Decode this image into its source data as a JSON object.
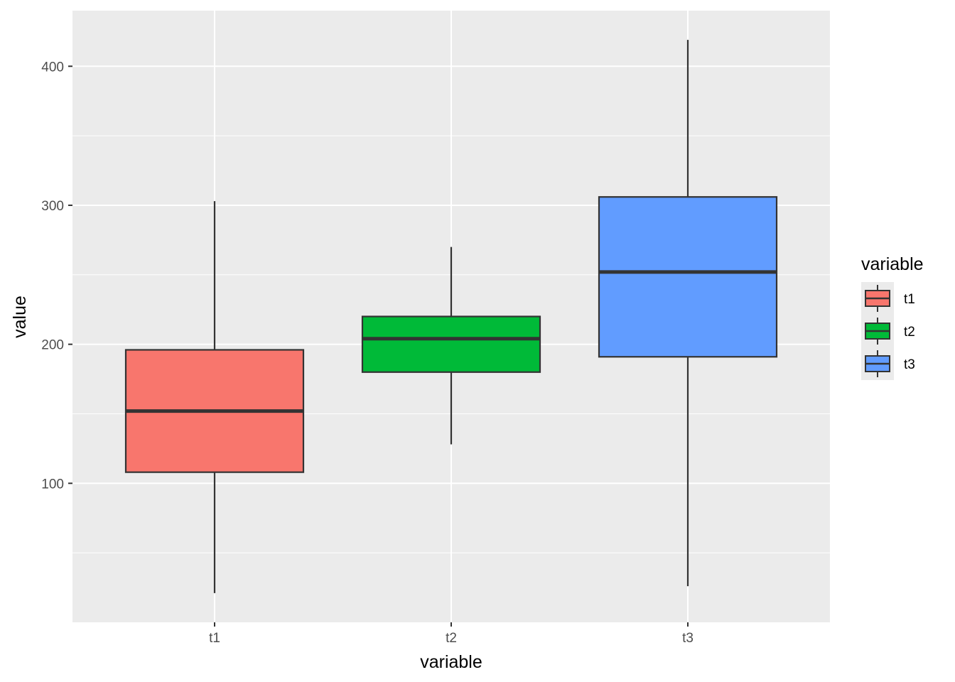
{
  "chart_data": {
    "type": "boxplot",
    "xlabel": "variable",
    "ylabel": "value",
    "ylim": [
      0,
      440
    ],
    "yticks": [
      100,
      200,
      300,
      400
    ],
    "grid": true,
    "legend_position": "right",
    "legend": {
      "title": "variable",
      "items": [
        {
          "label": "t1",
          "color": "#F8766D"
        },
        {
          "label": "t2",
          "color": "#00BA38"
        },
        {
          "label": "t3",
          "color": "#619CFF"
        }
      ]
    },
    "categories": [
      "t1",
      "t2",
      "t3"
    ],
    "boxes": [
      {
        "category": "t1",
        "min": 21,
        "q1": 108,
        "median": 152,
        "q3": 196,
        "max": 303,
        "color": "#F8766D"
      },
      {
        "category": "t2",
        "min": 128,
        "q1": 180,
        "median": 204,
        "q3": 220,
        "max": 270,
        "color": "#00BA38"
      },
      {
        "category": "t3",
        "min": 26,
        "q1": 191,
        "median": 252,
        "q3": 306,
        "max": 419,
        "color": "#619CFF"
      }
    ]
  },
  "colors": {
    "panel_background": "#EBEBEB",
    "grid": "#FFFFFF",
    "box_outline": "#333333"
  }
}
